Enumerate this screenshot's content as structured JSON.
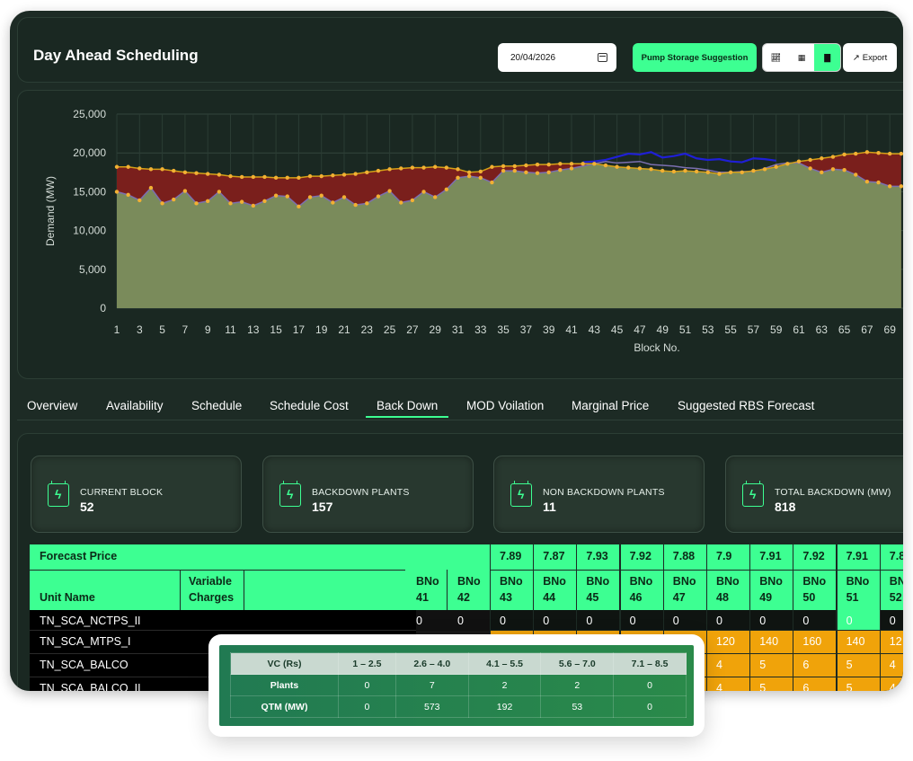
{
  "header": {
    "title": "Day Ahead Scheduling",
    "date": "20/04/2026",
    "pump_label": "Pump Storage Suggestion",
    "export_label": "Export",
    "view_icons": [
      "area-chart-icon",
      "table-icon",
      "bar-chart-icon"
    ]
  },
  "chart_data": {
    "type": "area",
    "ylabel": "Demand (MW)",
    "xlabel": "Block No.",
    "ylim": [
      0,
      25000
    ],
    "yticks": [
      "0",
      "5,000",
      "10,000",
      "15,000",
      "20,000",
      "25,000"
    ],
    "xticks": [
      "1",
      "3",
      "5",
      "7",
      "9",
      "11",
      "13",
      "15",
      "17",
      "19",
      "21",
      "23",
      "25",
      "27",
      "29",
      "31",
      "33",
      "35",
      "37",
      "39",
      "41",
      "43",
      "45",
      "47",
      "49",
      "51",
      "53",
      "55",
      "57",
      "59",
      "61",
      "63",
      "65",
      "67",
      "69"
    ],
    "x": [
      1,
      2,
      3,
      4,
      5,
      6,
      7,
      8,
      9,
      10,
      11,
      12,
      13,
      14,
      15,
      16,
      17,
      18,
      19,
      20,
      21,
      22,
      23,
      24,
      25,
      26,
      27,
      28,
      29,
      30,
      31,
      32,
      33,
      34,
      35,
      36,
      37,
      38,
      39,
      40,
      41,
      42,
      43,
      44,
      45,
      46,
      47,
      48,
      49,
      50,
      51,
      52,
      53,
      54,
      55,
      56,
      57,
      58,
      59,
      60,
      61,
      62,
      63,
      64,
      65,
      66,
      67,
      68,
      69,
      70
    ],
    "series": [
      {
        "values": [
          18200,
          18200,
          18000,
          17900,
          17900,
          17700,
          17500,
          17400,
          17300,
          17200,
          17000,
          16900,
          16900,
          16900,
          16800,
          16800,
          16800,
          17000,
          17000,
          17100,
          17200,
          17300,
          17500,
          17700,
          17900,
          18000,
          18100,
          18100,
          18200,
          18100,
          17900,
          17500,
          17600,
          18200,
          18300,
          18300,
          18400,
          18500,
          18500,
          18600,
          18600,
          18600,
          18600,
          18400,
          18200,
          18100,
          18000,
          17900,
          17700,
          17600,
          17700,
          17600,
          17500,
          17300,
          17500,
          17500,
          17700,
          17900,
          18200,
          18600,
          18900,
          19100,
          19300,
          19500,
          19800,
          19900,
          20100,
          20000,
          19900,
          19900
        ]
      },
      {
        "values": [
          15000,
          14600,
          13900,
          15500,
          13500,
          14000,
          15100,
          13500,
          13800,
          15000,
          13500,
          13700,
          13200,
          13800,
          14500,
          14400,
          13100,
          14300,
          14500,
          13600,
          14300,
          13300,
          13500,
          14400,
          15100,
          13600,
          13900,
          15000,
          14300,
          15300,
          16800,
          17000,
          16800,
          16200,
          17700,
          17700,
          17500,
          17400,
          17500,
          17800,
          18000,
          18300,
          18600,
          18900,
          18700,
          18800,
          18900,
          18500,
          18400,
          18300,
          18100,
          18000,
          17800,
          17500,
          17500,
          17600,
          17600,
          18000,
          18500,
          18700,
          18700,
          18000,
          17500,
          17900,
          17800,
          17200,
          16300,
          16200,
          15700,
          15700
        ]
      },
      {
        "values": [
          null,
          null,
          null,
          null,
          null,
          null,
          null,
          null,
          null,
          null,
          null,
          null,
          null,
          null,
          null,
          null,
          null,
          null,
          null,
          null,
          null,
          null,
          null,
          null,
          null,
          null,
          null,
          null,
          null,
          null,
          null,
          null,
          null,
          null,
          null,
          null,
          null,
          null,
          null,
          null,
          null,
          18800,
          18900,
          19100,
          19500,
          19900,
          19800,
          20100,
          19400,
          19600,
          19900,
          19300,
          19100,
          19200,
          18900,
          18800,
          19300,
          19200,
          19000,
          null,
          null,
          null,
          null,
          null,
          null,
          null,
          null,
          null,
          null,
          null
        ]
      }
    ],
    "colors": {
      "backdown": "#7a1f1c",
      "base": "#7a8b5b",
      "upper_line": "#d4a017",
      "lower_line": "#7b6fb0",
      "forecast_line": "#1f1fd6"
    }
  },
  "tabs": [
    {
      "label": "Overview"
    },
    {
      "label": "Availability"
    },
    {
      "label": "Schedule"
    },
    {
      "label": "Schedule Cost"
    },
    {
      "label": "Back Down"
    },
    {
      "label": "MOD Voilation"
    },
    {
      "label": "Marginal Price"
    },
    {
      "label": "Suggested RBS Forecast"
    }
  ],
  "stats": [
    {
      "label": "CURRENT BLOCK",
      "value": "52"
    },
    {
      "label": "BACKDOWN PLANTS",
      "value": "157"
    },
    {
      "label": "NON BACKDOWN PLANTS",
      "value": "11"
    },
    {
      "label": "TOTAL BACKDOWN (MW)",
      "value": "818"
    }
  ],
  "table": {
    "forecast_label": "Forecast Price",
    "unit_name_label": "Unit Name",
    "variable_label": "Variable",
    "charges_label": "Charges",
    "prices": [
      "7.89",
      "7.87",
      "7.93",
      "7.92",
      "7.88",
      "7.9",
      "7.91",
      "7.92",
      "7.91",
      "7.8"
    ],
    "bno_label": "BNo",
    "blocks": [
      "43",
      "44",
      "45",
      "46",
      "47",
      "48",
      "49",
      "50",
      "51",
      "52"
    ],
    "partial_blocks": [
      "41",
      "42"
    ],
    "rows": [
      {
        "name": "TN_SCA_NCTPS_II",
        "partial": [
          "0",
          "0"
        ],
        "values": [
          "0",
          "0",
          "0",
          "0",
          "0",
          "0",
          "0",
          "0",
          "0",
          "0"
        ]
      },
      {
        "name": "TN_SCA_MTPS_I",
        "partial": [
          "",
          ""
        ],
        "values": [
          "",
          "",
          "",
          "",
          "",
          "120",
          "140",
          "160",
          "140",
          "12"
        ]
      },
      {
        "name": "TN_SCA_BALCO",
        "partial": [
          "",
          ""
        ],
        "values": [
          "",
          "",
          "",
          "",
          "",
          "4",
          "5",
          "6",
          "5",
          "4"
        ]
      },
      {
        "name": "TN_SCA_BALCO_II",
        "partial": [
          "",
          ""
        ],
        "values": [
          "",
          "",
          "",
          "",
          "",
          "4",
          "5",
          "6",
          "5",
          "4"
        ]
      }
    ]
  },
  "vc_table": {
    "header": [
      "VC (Rs)",
      "1 – 2.5",
      "2.6 – 4.0",
      "4.1 – 5.5",
      "5.6 – 7.0",
      "7.1 – 8.5"
    ],
    "plants": [
      "Plants",
      "0",
      "7",
      "2",
      "2",
      "0"
    ],
    "qtm": [
      "QTM (MW)",
      "0",
      "573",
      "192",
      "53",
      "0"
    ]
  }
}
